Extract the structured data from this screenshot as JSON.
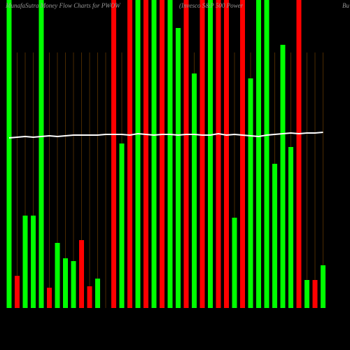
{
  "chart_data": {
    "type": "bar",
    "title": "MunafaSutra  Money Flow  Charts for PWOW",
    "subtitle": "(Invesco S&P 500 Power",
    "corner_text": "Bu",
    "ylim": [
      0,
      440
    ],
    "values": [
      440,
      46,
      132,
      132,
      440,
      29,
      93,
      71,
      67,
      97,
      31,
      42,
      0,
      440,
      235,
      440,
      440,
      440,
      440,
      440,
      440,
      400,
      440,
      335,
      440,
      440,
      440,
      440,
      129,
      440,
      328,
      440,
      440,
      206,
      376,
      230,
      440,
      40,
      40,
      61
    ],
    "colors": [
      "#00ff00",
      "#ff0000",
      "#00ff00",
      "#00ff00",
      "#00ff00",
      "#ff0000",
      "#00ff00",
      "#00ff00",
      "#00ff00",
      "#ff0000",
      "#ff0000",
      "#00ff00",
      "#00ff00",
      "#ff0000",
      "#00ff00",
      "#ff0000",
      "#00ff00",
      "#ff0000",
      "#00ff00",
      "#ff0000",
      "#00ff00",
      "#00ff00",
      "#ff0000",
      "#00ff00",
      "#ff0000",
      "#00ff00",
      "#ff0000",
      "#ff0000",
      "#00ff00",
      "#ff0000",
      "#00ff00",
      "#00ff00",
      "#00ff00",
      "#00ff00",
      "#00ff00",
      "#00ff00",
      "#ff0000",
      "#00ff00",
      "#ff0000",
      "#00ff00"
    ],
    "line": {
      "color": "#ffffff",
      "values": [
        243,
        244,
        245,
        244,
        245,
        246,
        245,
        246,
        247,
        247,
        247,
        247,
        248,
        248,
        248,
        247,
        249,
        248,
        247,
        248,
        248,
        247,
        248,
        248,
        247,
        247,
        249,
        247,
        248,
        247,
        246,
        245,
        247,
        248,
        249,
        250,
        249,
        250,
        250,
        251
      ]
    }
  }
}
